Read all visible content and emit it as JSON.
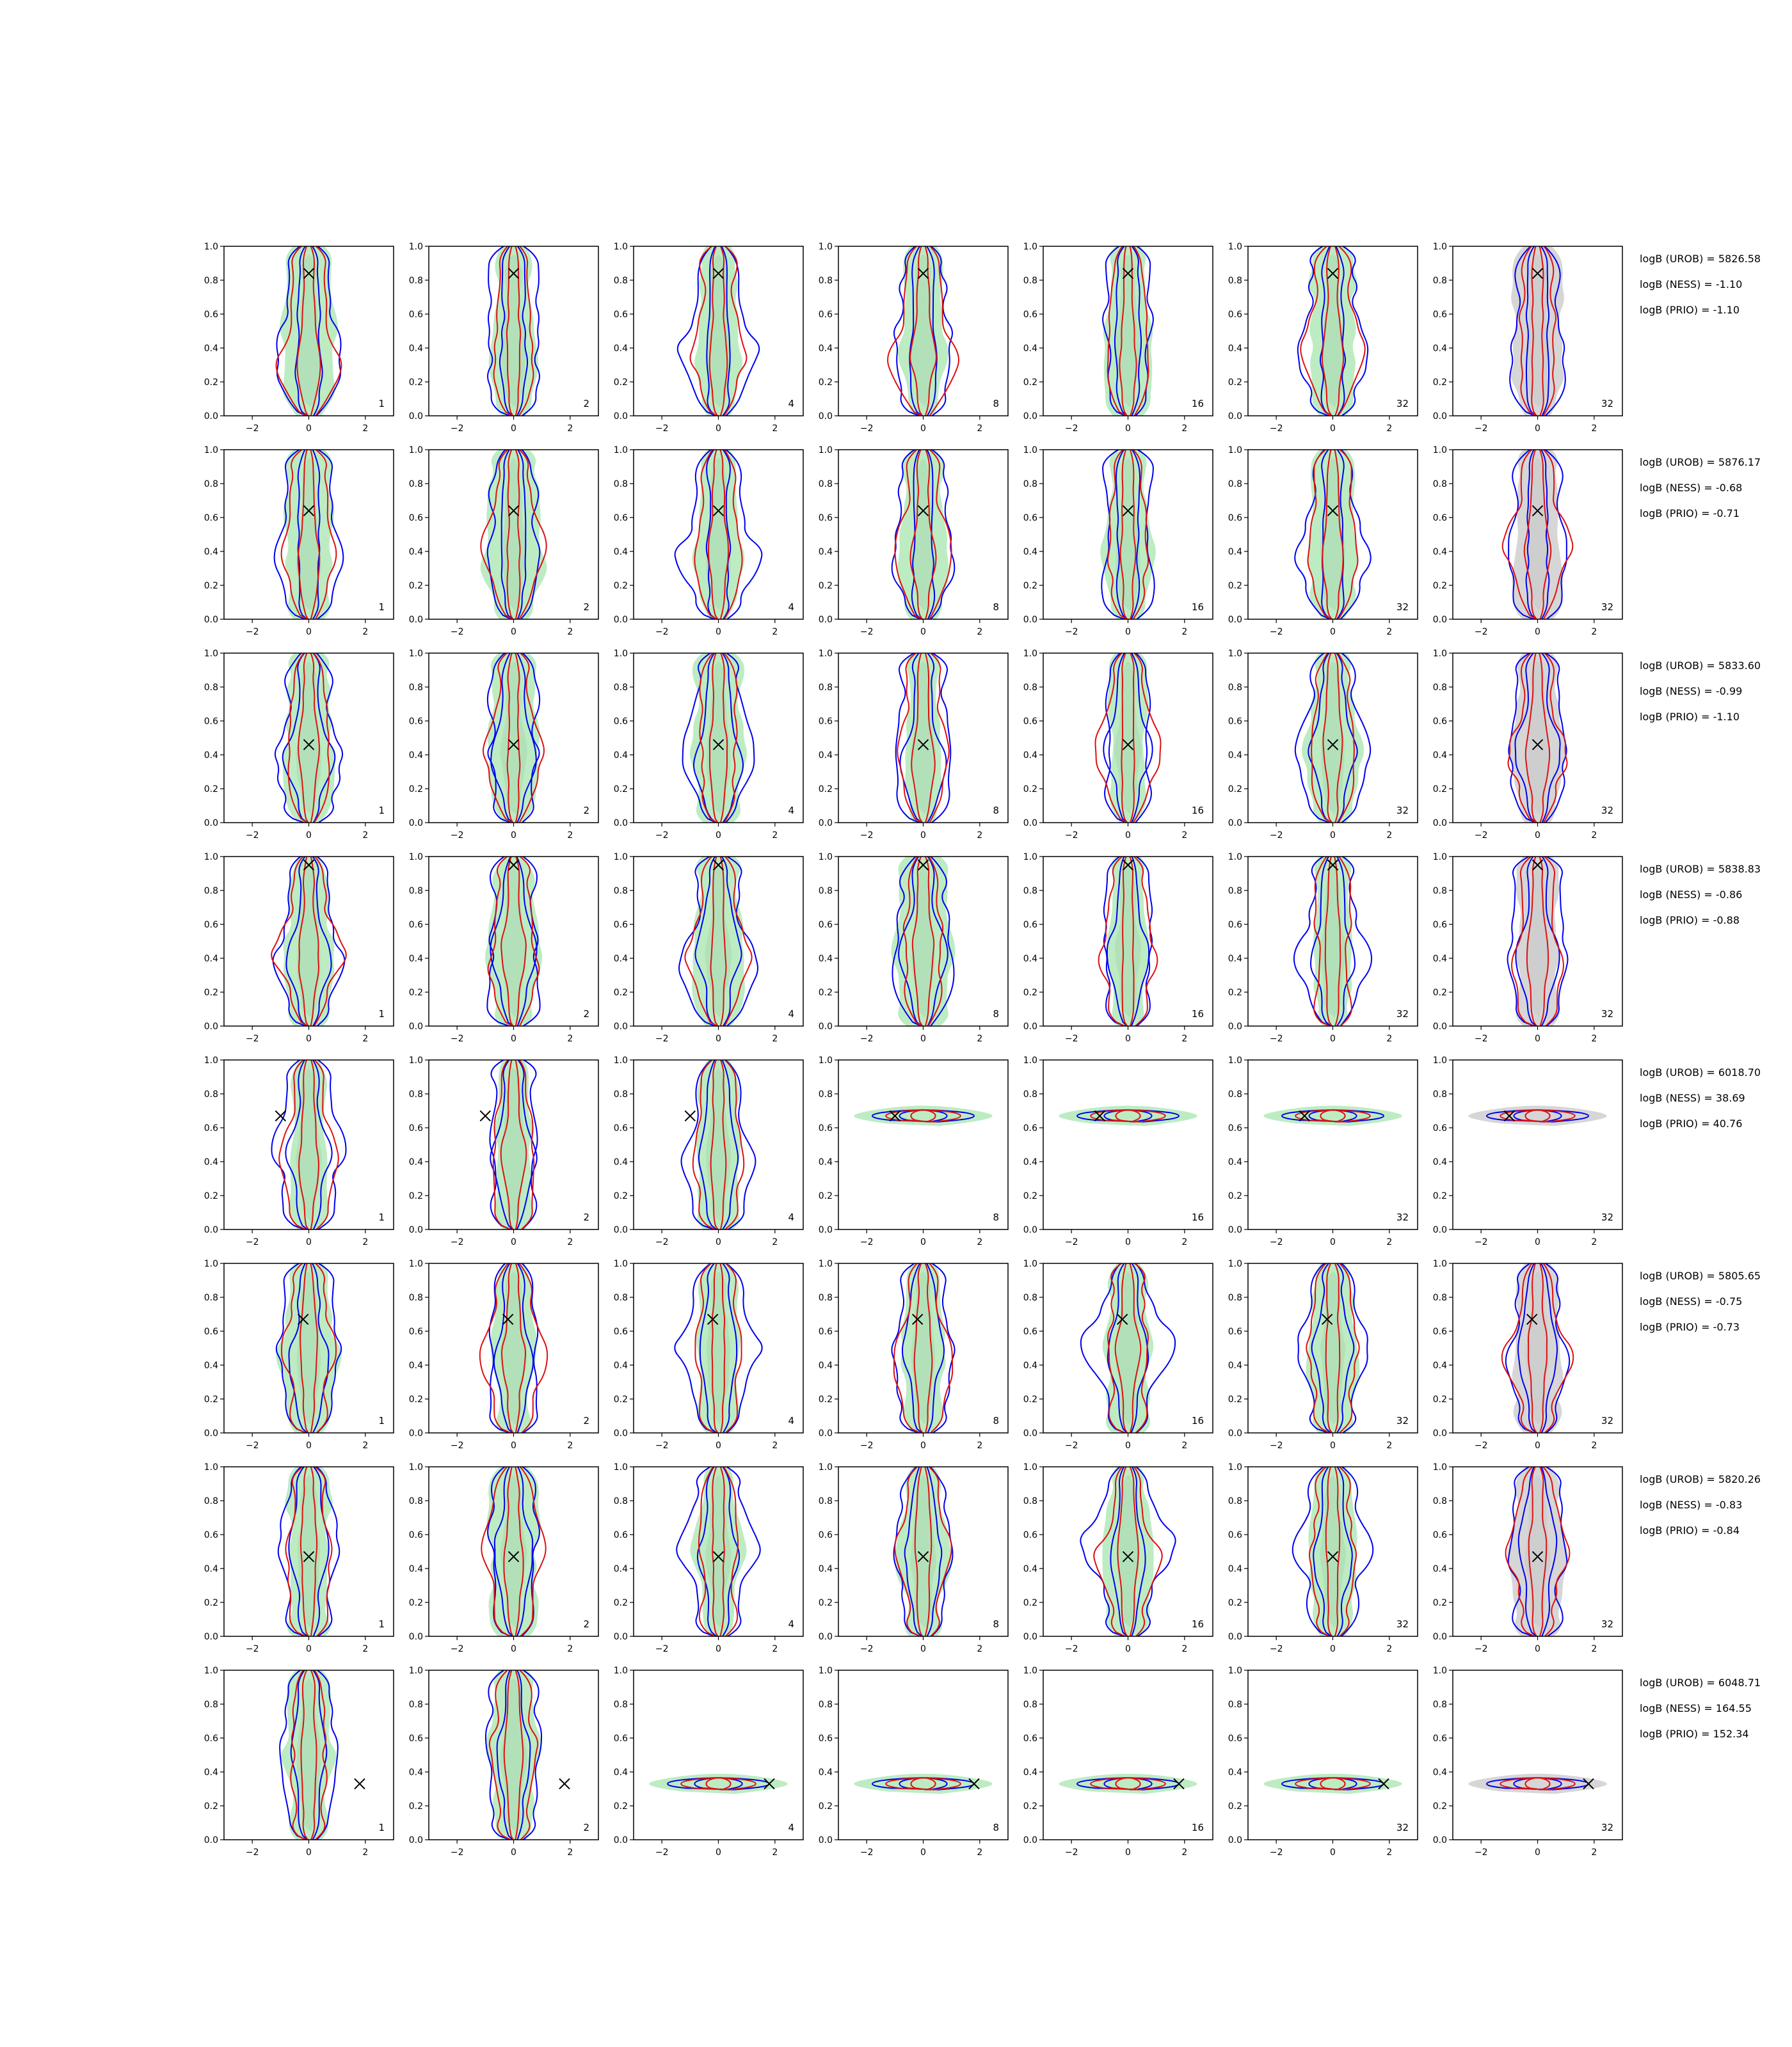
{
  "chart_data": {
    "type": "contour-grid",
    "rows": 8,
    "columns": 7,
    "panel_labels": [
      "1",
      "2",
      "4",
      "8",
      "16",
      "32",
      "32"
    ],
    "xlim": [
      -3,
      3
    ],
    "ylim": [
      0,
      1
    ],
    "xticks": [
      -2,
      0,
      2
    ],
    "yticks": [
      0.0,
      0.2,
      0.4,
      0.6,
      0.8,
      1.0
    ],
    "xtick_labels": [
      "−2",
      "0",
      "2"
    ],
    "ytick_labels": [
      "0.0",
      "0.2",
      "0.4",
      "0.6",
      "0.8",
      "1.0"
    ],
    "colors": {
      "green_fill": "#bdecc3",
      "grey_fill": "#d6d6d6",
      "blue_contour": "#0000ee",
      "red_contour": "#dd1111",
      "marker": "#000000"
    },
    "true_points": [
      {
        "x": 0.0,
        "y": 0.84
      },
      {
        "x": 0.0,
        "y": 0.64
      },
      {
        "x": 0.0,
        "y": 0.46
      },
      {
        "x": 0.0,
        "y": 0.95
      },
      {
        "x": -1.0,
        "y": 0.67
      },
      {
        "x": -0.2,
        "y": 0.67
      },
      {
        "x": 0.0,
        "y": 0.47
      },
      {
        "x": 1.8,
        "y": 0.33
      }
    ],
    "annotations": [
      [
        "logB (UROB) = 5826.58",
        "logB (NESS) = -1.10",
        "logB (PRIO) = -1.10"
      ],
      [
        "logB (UROB) = 5876.17",
        "logB (NESS) = -0.68",
        "logB (PRIO) = -0.71"
      ],
      [
        "logB (UROB) = 5833.60",
        "logB (NESS) = -0.99",
        "logB (PRIO) = -1.10"
      ],
      [
        "logB (UROB) = 5838.83",
        "logB (NESS) = -0.86",
        "logB (PRIO) = -0.88"
      ],
      [
        "logB (UROB) = 6018.70",
        "logB (NESS) = 38.69",
        "logB (PRIO) = 40.76"
      ],
      [
        "logB (UROB) = 5805.65",
        "logB (NESS) = -0.75",
        "logB (PRIO) = -0.73"
      ],
      [
        "logB (UROB) = 5820.26",
        "logB (NESS) = -0.83",
        "logB (PRIO) = -0.84"
      ],
      [
        "logB (UROB) = 6048.71",
        "logB (NESS) = 164.55",
        "logB (PRIO) = 152.34"
      ]
    ]
  }
}
